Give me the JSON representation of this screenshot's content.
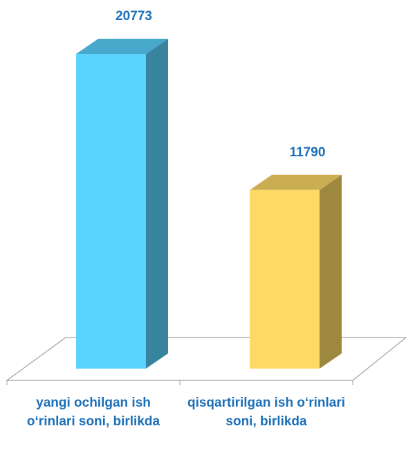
{
  "chart_data": {
    "type": "bar3d",
    "categories": [
      "yangi ochilgan ish o‘rinlari soni, birlikda",
      "qisqartirilgan ish o‘rinlari soni, birlikda"
    ],
    "values": [
      20773,
      11790
    ],
    "colors": [
      "#5bd3ff",
      "#ffd966"
    ]
  }
}
